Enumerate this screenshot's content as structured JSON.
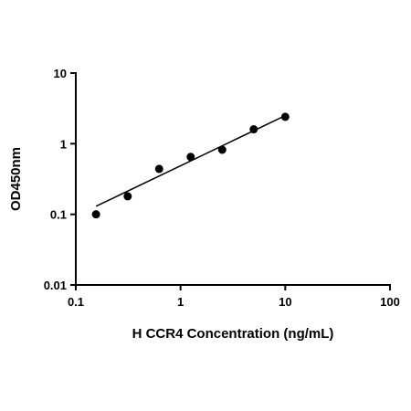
{
  "chart_data": {
    "type": "scatter",
    "title": "",
    "xlabel": "H CCR4 Concentration (ng/mL)",
    "ylabel": "OD450nm",
    "x_scale": "log",
    "y_scale": "log",
    "xlim": [
      0.1,
      100
    ],
    "ylim": [
      0.01,
      10
    ],
    "x_ticks": [
      "0.1",
      "1",
      "10",
      "100"
    ],
    "y_ticks": [
      "0.01",
      "0.1",
      "1",
      "10"
    ],
    "grid": false,
    "legend": "none",
    "series": [
      {
        "x": [
          0.156,
          0.313,
          0.625,
          1.25,
          2.5,
          5,
          10
        ],
        "y": [
          0.1,
          0.18,
          0.44,
          0.65,
          0.82,
          1.6,
          2.4
        ]
      }
    ],
    "fit_line": {
      "x_range": [
        0.156,
        10
      ],
      "y_range": [
        0.13,
        2.5
      ]
    },
    "colors": {
      "marker": "#000000",
      "line": "#000000",
      "axis": "#000000"
    }
  }
}
